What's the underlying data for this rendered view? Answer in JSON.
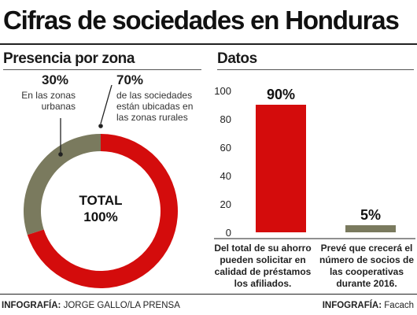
{
  "title": "Cifras de sociedades en Honduras",
  "left_panel": {
    "section_title": "Presencia por zona",
    "center_label_line1": "TOTAL",
    "center_label_line2": "100%",
    "urban": {
      "pct": "30%",
      "desc": "En las zonas urbanas",
      "color": "#7a7a5e"
    },
    "rural": {
      "pct": "70%",
      "desc": "de las sociedades están ubicadas en las zonas rurales",
      "color": "#d40c0c"
    }
  },
  "right_panel": {
    "section_title": "Datos"
  },
  "chart_data": [
    {
      "type": "pie",
      "labels": [
        "En las zonas urbanas",
        "de las sociedades están ubicadas en las zonas rurales"
      ],
      "values": [
        30,
        70
      ],
      "center_text": "TOTAL 100%"
    },
    {
      "type": "bar",
      "categories": [
        "Del total de su ahorro pueden solicitar en calidad de préstamos los afiliados.",
        "Prevé que crecerá el número de socios de las cooperativas durante 2016."
      ],
      "values": [
        90,
        5
      ],
      "data_labels": [
        "90%",
        "5%"
      ],
      "ylim": [
        0,
        100
      ],
      "yticks": [
        0,
        20,
        40,
        60,
        80,
        100
      ],
      "colors": [
        "#d40c0c",
        "#7a7a5e"
      ],
      "grid": false
    }
  ],
  "footer": {
    "left_label": "INFOGRAFÍA:",
    "left_value": "JORGE GALLO/LA PRENSA",
    "right_label": "INFOGRAFÍA:",
    "right_value": "Facach"
  }
}
